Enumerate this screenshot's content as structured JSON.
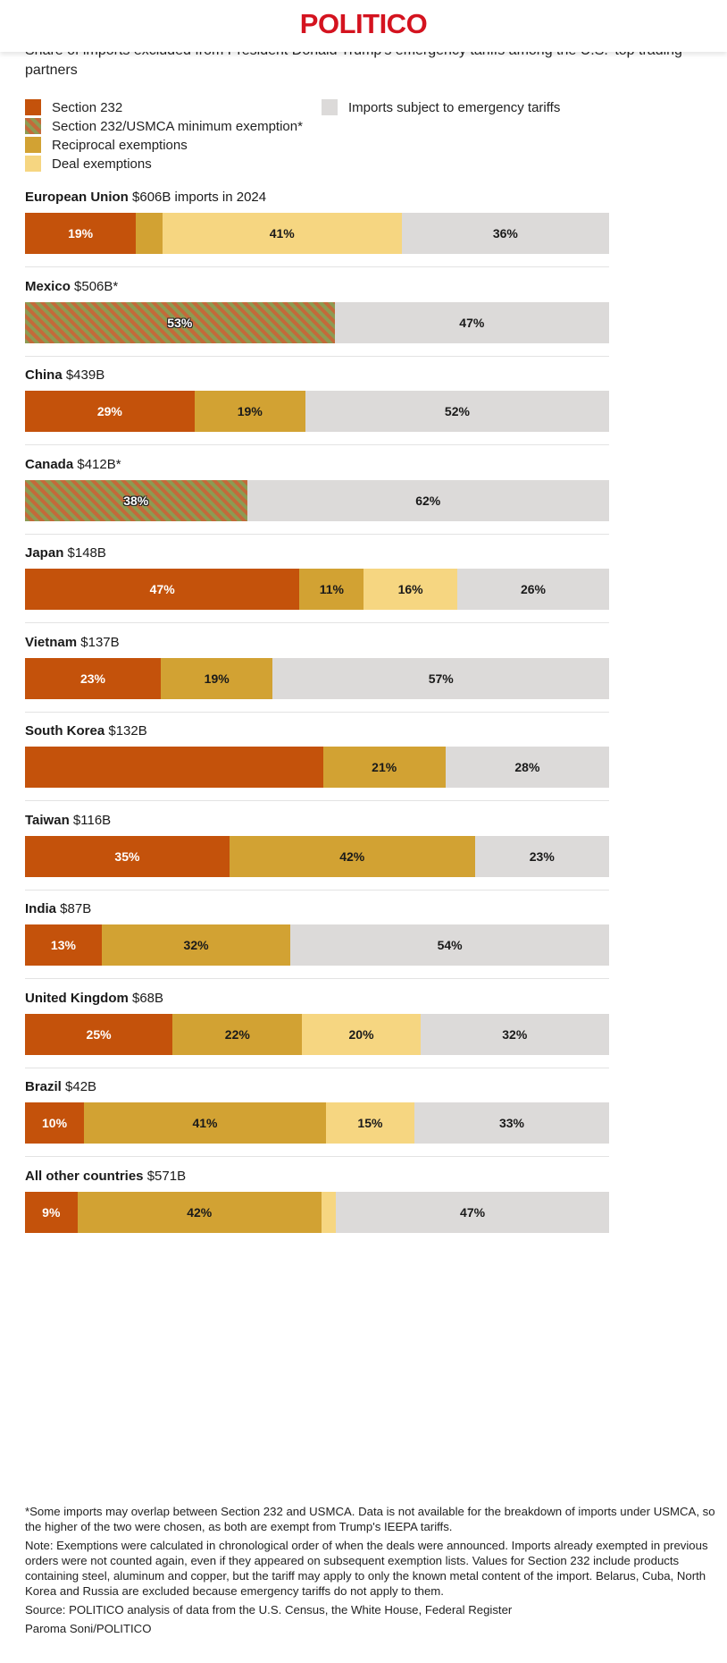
{
  "brand": "POLITICO",
  "subtitle": "Share of imports excluded from President Donald Trump's emergency tariffs among the U.S.' top trading partners",
  "chart_data": {
    "type": "bar",
    "orientation": "horizontal",
    "stacked": true,
    "value_unit": "%",
    "legend": [
      {
        "key": "s232",
        "label": "Section 232",
        "color": "#c4520b"
      },
      {
        "key": "usmca",
        "label": "Section 232/USMCA minimum exemption*",
        "color": "#8d9a52",
        "pattern": "hatch"
      },
      {
        "key": "reciprocal",
        "label": "Reciprocal exemptions",
        "color": "#d2a233"
      },
      {
        "key": "deal",
        "label": "Deal exemptions",
        "color": "#f6d681"
      },
      {
        "key": "subject",
        "label": "Imports subject to emergency tariffs",
        "color": "#dcdad9"
      }
    ],
    "countries": [
      {
        "name": "European Union",
        "imports": "$606B imports in 2024",
        "segments": [
          {
            "key": "s232",
            "value": 19,
            "label": "19%"
          },
          {
            "key": "reciprocal",
            "value": 4.5,
            "label": ""
          },
          {
            "key": "deal",
            "value": 41,
            "label": "41%"
          },
          {
            "key": "subject",
            "value": 35.5,
            "label": "36%"
          }
        ]
      },
      {
        "name": "Mexico",
        "imports": "$506B*",
        "segments": [
          {
            "key": "usmca",
            "value": 53,
            "label": "53%"
          },
          {
            "key": "subject",
            "value": 47,
            "label": "47%"
          }
        ]
      },
      {
        "name": "China",
        "imports": "$439B",
        "segments": [
          {
            "key": "s232",
            "value": 29,
            "label": "29%"
          },
          {
            "key": "reciprocal",
            "value": 19,
            "label": "19%"
          },
          {
            "key": "subject",
            "value": 52,
            "label": "52%"
          }
        ]
      },
      {
        "name": "Canada",
        "imports": "$412B*",
        "segments": [
          {
            "key": "usmca",
            "value": 38,
            "label": "38%"
          },
          {
            "key": "subject",
            "value": 62,
            "label": "62%"
          }
        ]
      },
      {
        "name": "Japan",
        "imports": "$148B",
        "segments": [
          {
            "key": "s232",
            "value": 47,
            "label": "47%"
          },
          {
            "key": "reciprocal",
            "value": 11,
            "label": "11%"
          },
          {
            "key": "deal",
            "value": 16,
            "label": "16%"
          },
          {
            "key": "subject",
            "value": 26,
            "label": "26%"
          }
        ]
      },
      {
        "name": "Vietnam",
        "imports": "$137B",
        "segments": [
          {
            "key": "s232",
            "value": 23,
            "label": "23%"
          },
          {
            "key": "reciprocal",
            "value": 19,
            "label": "19%"
          },
          {
            "key": "subject",
            "value": 57,
            "label": "57%"
          }
        ]
      },
      {
        "name": "South Korea",
        "imports": "$132B",
        "segments": [
          {
            "key": "s232",
            "value": 51,
            "label": ""
          },
          {
            "key": "reciprocal",
            "value": 21,
            "label": "21%"
          },
          {
            "key": "subject",
            "value": 28,
            "label": "28%"
          }
        ]
      },
      {
        "name": "Taiwan",
        "imports": "$116B",
        "segments": [
          {
            "key": "s232",
            "value": 35,
            "label": "35%"
          },
          {
            "key": "reciprocal",
            "value": 42,
            "label": "42%"
          },
          {
            "key": "subject",
            "value": 23,
            "label": "23%"
          }
        ]
      },
      {
        "name": "India",
        "imports": "$87B",
        "segments": [
          {
            "key": "s232",
            "value": 13,
            "label": "13%"
          },
          {
            "key": "reciprocal",
            "value": 32,
            "label": "32%"
          },
          {
            "key": "subject",
            "value": 54,
            "label": "54%"
          }
        ]
      },
      {
        "name": "United Kingdom",
        "imports": "$68B",
        "segments": [
          {
            "key": "s232",
            "value": 25,
            "label": "25%"
          },
          {
            "key": "reciprocal",
            "value": 22,
            "label": "22%"
          },
          {
            "key": "deal",
            "value": 20,
            "label": "20%"
          },
          {
            "key": "subject",
            "value": 32,
            "label": "32%"
          }
        ]
      },
      {
        "name": "Brazil",
        "imports": "$42B",
        "segments": [
          {
            "key": "s232",
            "value": 10,
            "label": "10%"
          },
          {
            "key": "reciprocal",
            "value": 41,
            "label": "41%"
          },
          {
            "key": "deal",
            "value": 15,
            "label": "15%"
          },
          {
            "key": "subject",
            "value": 33,
            "label": "33%"
          }
        ]
      },
      {
        "name": "All other countries",
        "imports": "$571B",
        "segments": [
          {
            "key": "s232",
            "value": 9,
            "label": "9%"
          },
          {
            "key": "reciprocal",
            "value": 42,
            "label": "42%"
          },
          {
            "key": "deal",
            "value": 2.5,
            "label": ""
          },
          {
            "key": "subject",
            "value": 47,
            "label": "47%"
          }
        ]
      }
    ]
  },
  "footnotes": {
    "asterisk": "*Some imports may overlap between Section 232 and USMCA. Data is not available for the breakdown of imports under USMCA, so the higher of the two were chosen, as both are exempt from Trump's IEEPA tariffs.",
    "note": "Note: Exemptions were calculated in chronological order of when the deals were announced. Imports already exempted in previous orders were not counted again, even if they appeared on subsequent exemption lists. Values for Section 232 include products containing steel, aluminum and copper, but the tariff may apply to only the known metal content of the import. Belarus, Cuba, North Korea and Russia are excluded because emergency tariffs do not apply to them.",
    "source": "Source: POLITICO analysis of data from the U.S. Census, the White House, Federal Register",
    "credit": "Paroma Soni/POLITICO"
  }
}
